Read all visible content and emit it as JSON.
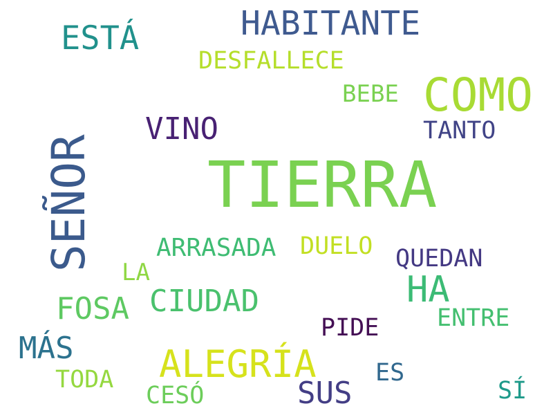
{
  "words": [
    {
      "id": "tierra",
      "text": "TIERRA",
      "color": "#7ad151"
    },
    {
      "id": "senor",
      "text": "SEÑOR",
      "color": "#3b5a8c"
    },
    {
      "id": "como",
      "text": "COMO",
      "color": "#a8db34"
    },
    {
      "id": "habitante",
      "text": "HABITANTE",
      "color": "#3f5a8f"
    },
    {
      "id": "alegria",
      "text": "ALEGRÍA",
      "color": "#d6e21c"
    },
    {
      "id": "esta",
      "text": "ESTÁ",
      "color": "#21918c"
    },
    {
      "id": "ha",
      "text": "HA",
      "color": "#3cbb75"
    },
    {
      "id": "desfallece",
      "text": "DESFALLECE",
      "color": "#b5de2b"
    },
    {
      "id": "vino",
      "text": "VINO",
      "color": "#482173"
    },
    {
      "id": "bebe",
      "text": "BEBE",
      "color": "#7ad151"
    },
    {
      "id": "tanto",
      "text": "TANTO",
      "color": "#414487"
    },
    {
      "id": "arrasada",
      "text": "ARRASADA",
      "color": "#3fbc73"
    },
    {
      "id": "duelo",
      "text": "DUELO",
      "color": "#c2df23"
    },
    {
      "id": "quedan",
      "text": "QUEDAN",
      "color": "#443983"
    },
    {
      "id": "la",
      "text": "LA",
      "color": "#8fd744"
    },
    {
      "id": "ciudad",
      "text": "CIUDAD",
      "color": "#4ac16d"
    },
    {
      "id": "fosa",
      "text": "FOSA",
      "color": "#5ec962"
    },
    {
      "id": "entre",
      "text": "ENTRE",
      "color": "#44bf70"
    },
    {
      "id": "pide",
      "text": "PIDE",
      "color": "#440f54"
    },
    {
      "id": "mas",
      "text": "MÁS",
      "color": "#2c728e"
    },
    {
      "id": "todo",
      "text": "TODA",
      "color": "#95d840"
    },
    {
      "id": "sus",
      "text": "SUS",
      "color": "#433e85"
    },
    {
      "id": "es",
      "text": "ES",
      "color": "#31688e"
    },
    {
      "id": "ceso",
      "text": "CESÓ",
      "color": "#6ccd5a"
    },
    {
      "id": "si",
      "text": "SÍ",
      "color": "#1f9a8a"
    }
  ]
}
